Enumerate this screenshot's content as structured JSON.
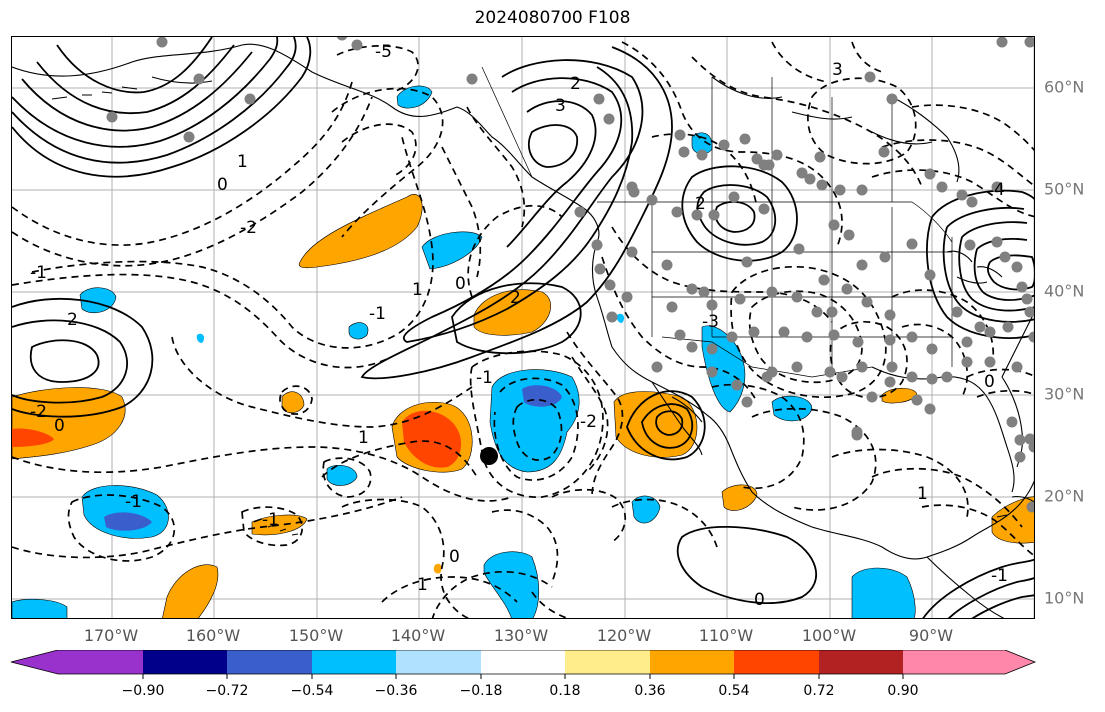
{
  "title": "2024080700 F108",
  "lon_labels": [
    "170°W",
    "160°W",
    "150°W",
    "140°W",
    "130°W",
    "120°W",
    "110°W",
    "100°W",
    "90°W"
  ],
  "lat_labels": [
    "60°N",
    "50°N",
    "40°N",
    "30°N",
    "20°N",
    "10°N"
  ],
  "contour_labels": [
    "-5",
    "3",
    "2",
    "1",
    "0",
    "-1",
    "-2",
    "3",
    "2",
    "1",
    "0",
    "4",
    "-1",
    "-2",
    "2",
    "0",
    "1",
    "-1",
    "-3",
    "-2",
    "2",
    "1",
    "0",
    "-1",
    "0",
    "-1",
    "1",
    "-1",
    "0"
  ],
  "colorbar": {
    "ticks": [
      "−0.90",
      "−0.72",
      "−0.54",
      "−0.36",
      "−0.18",
      "0.18",
      "0.36",
      "0.54",
      "0.72",
      "0.90"
    ],
    "colors": [
      "#9932cc",
      "#00008b",
      "#3a5fcd",
      "#00bfff",
      "#b0e2ff",
      "#ffffff",
      "#ffec8b",
      "#ffa500",
      "#ff4500",
      "#b22222",
      "#ff88aa"
    ]
  },
  "colors": {
    "coast": "#000000",
    "grid": "#b0b0b0",
    "station": "#808080",
    "storm": "#000000"
  }
}
